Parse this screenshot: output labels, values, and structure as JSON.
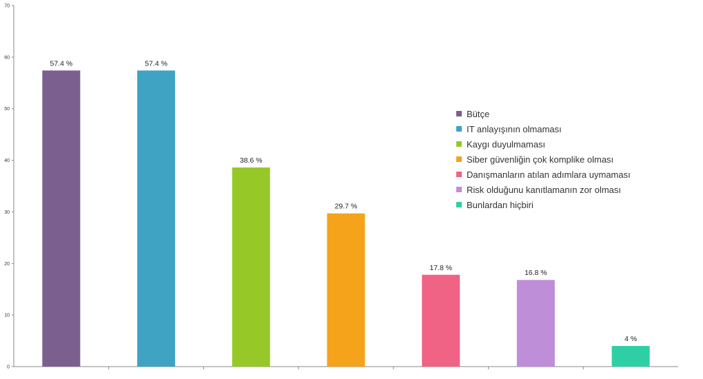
{
  "chart_data": {
    "type": "bar",
    "categories": [
      "Bütçe",
      "IT anlayışının olmaması",
      "Kaygı duyulmaması",
      "Siber güvenliğin çok komplike olması",
      "Danışmanların atılan adımlara uymaması",
      "Risk olduğunu kanıtlamanın zor olması",
      "Bunlardan hiçbiri"
    ],
    "values": [
      57.4,
      57.4,
      38.6,
      29.7,
      17.8,
      16.8,
      4
    ],
    "value_labels": [
      "57.4 %",
      "57.4 %",
      "38.6 %",
      "29.7 %",
      "17.8 %",
      "16.8 %",
      "4 %"
    ],
    "colors": [
      "#7b5f8e",
      "#3fa3c4",
      "#96c928",
      "#f4a31a",
      "#f06384",
      "#be8fd8",
      "#2ecfa4"
    ],
    "ylim": [
      0,
      70
    ],
    "yticks": [
      0,
      10,
      20,
      30,
      40,
      50,
      60,
      70
    ],
    "title": "",
    "xlabel": "",
    "ylabel": "",
    "legend_position": "right"
  }
}
